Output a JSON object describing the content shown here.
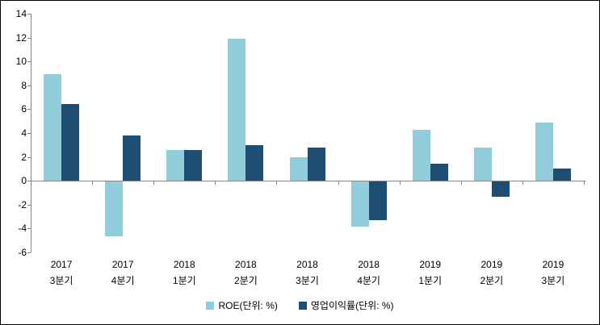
{
  "chart_data": {
    "type": "bar",
    "title": "",
    "xlabel": "",
    "ylabel": "",
    "categories": [
      [
        "2017",
        "3분기"
      ],
      [
        "2017",
        "4분기"
      ],
      [
        "2018",
        "1분기"
      ],
      [
        "2018",
        "2분기"
      ],
      [
        "2018",
        "3분기"
      ],
      [
        "2018",
        "4분기"
      ],
      [
        "2019",
        "1분기"
      ],
      [
        "2019",
        "2분기"
      ],
      [
        "2019",
        "3분기"
      ]
    ],
    "series": [
      {
        "name": "ROE(단위: %)",
        "color": "#92CDDC",
        "values": [
          8.9,
          -4.6,
          2.6,
          11.9,
          2.0,
          -3.8,
          4.3,
          2.8,
          4.9
        ]
      },
      {
        "name": "영업이익률(단위: %)",
        "color": "#1F4E74",
        "values": [
          6.4,
          3.8,
          2.6,
          3.0,
          2.8,
          -3.2,
          1.4,
          -1.3,
          1.0
        ]
      }
    ],
    "ylim": [
      -6,
      14
    ],
    "yticks": [
      14,
      12,
      10,
      8,
      6,
      4,
      2,
      0,
      -2,
      -4,
      -6
    ],
    "grid": false,
    "legend_position": "bottom",
    "axis_color": "#848484",
    "background_color": "#ffffff",
    "border_color": "#000000"
  }
}
